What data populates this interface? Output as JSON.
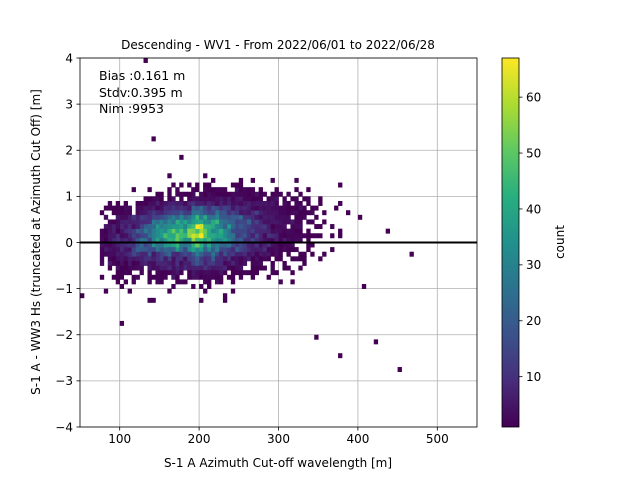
{
  "chart_data": {
    "type": "heatmap",
    "title": "Descending - WV1 - From 2022/06/01 to 2022/06/28",
    "xlabel": "S-1 A Azimuth Cut-off wavelength [m]",
    "ylabel": "S-1 A - WW3 Hs (truncated at Azimuth Cut Off) [m]",
    "xlim": [
      50,
      550
    ],
    "ylim": [
      -4,
      4
    ],
    "xticks": [
      "100",
      "200",
      "300",
      "400",
      "500"
    ],
    "yticks": [
      "4",
      "3",
      "2",
      "1",
      "0",
      "−1",
      "−2",
      "−3",
      "−4"
    ],
    "grid": true,
    "reference_line_y": 0,
    "stats": {
      "bias": "Bias :0.161 m",
      "stdv": "Stdv:0.395 m",
      "nim": "Nim :9953"
    },
    "colorbar": {
      "label": "count",
      "range": [
        1,
        67
      ],
      "ticks": [
        "10",
        "20",
        "30",
        "40",
        "50",
        "60"
      ],
      "colormap": "viridis"
    },
    "density_peak": {
      "x": 178,
      "y": 0.2,
      "count": 67
    },
    "bin_size": {
      "x": 5,
      "y": 0.1
    },
    "point_spread": {
      "x_center": 190,
      "x_sd": 60,
      "y_sd": 0.4,
      "x_range": [
        75,
        480
      ],
      "y_range": [
        -1.5,
        1.5
      ]
    },
    "outliers": [
      {
        "x": 130,
        "y": 3.9
      },
      {
        "x": 142,
        "y": 2.3
      },
      {
        "x": 178,
        "y": 1.9
      },
      {
        "x": 402,
        "y": 0.5
      },
      {
        "x": 437,
        "y": 0.2
      },
      {
        "x": 467,
        "y": -0.3
      },
      {
        "x": 50,
        "y": -1.15
      },
      {
        "x": 100,
        "y": -1.8
      },
      {
        "x": 345,
        "y": -2.05
      },
      {
        "x": 407,
        "y": -1.0
      },
      {
        "x": 420,
        "y": -2.2
      },
      {
        "x": 378,
        "y": -2.45
      },
      {
        "x": 453,
        "y": -2.8
      }
    ]
  }
}
